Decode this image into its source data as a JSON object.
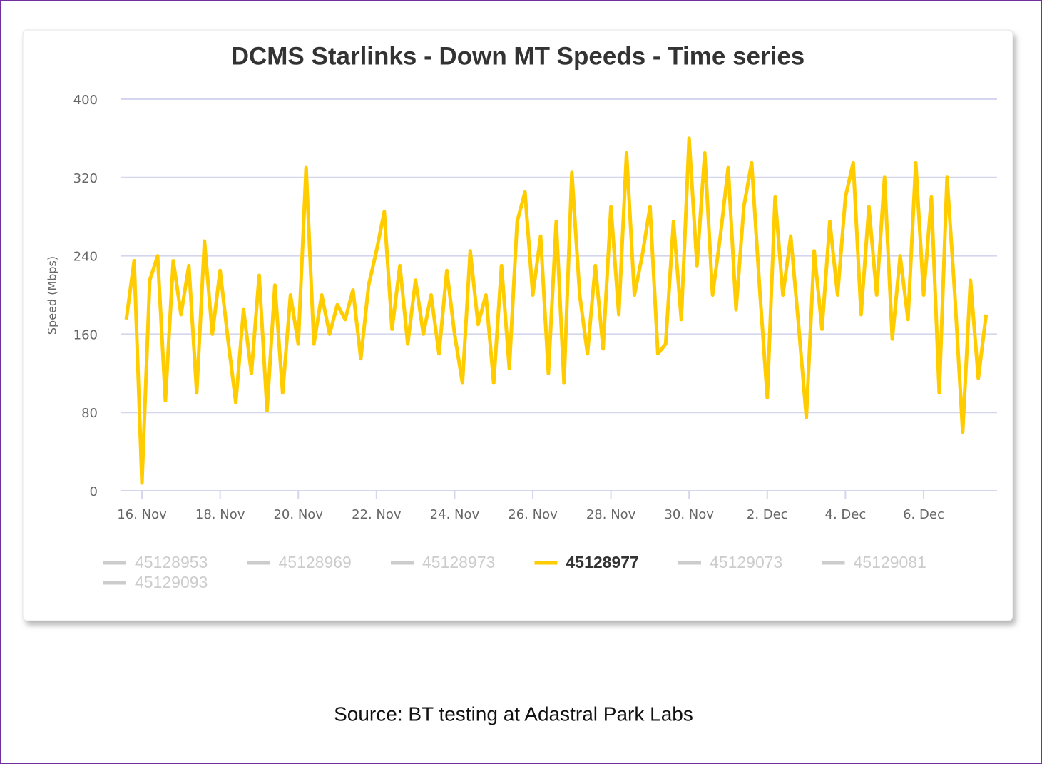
{
  "chart_data": {
    "type": "line",
    "title": "DCMS Starlinks - Down MT Speeds - Time series",
    "y_label": "Speed (Mbps)",
    "source": "Source: BT testing at Adastral Park Labs",
    "x": [
      -0.4,
      -0.2,
      0,
      0.2,
      0.4,
      0.6,
      0.8,
      1,
      1.2,
      1.4,
      1.6,
      1.8,
      2,
      2.2,
      2.4,
      2.6,
      2.8,
      3,
      3.2,
      3.4,
      3.6,
      3.8,
      4,
      4.2,
      4.4,
      4.6,
      4.8,
      5,
      5.2,
      5.4,
      5.6,
      5.8,
      6,
      6.2,
      6.4,
      6.6,
      6.8,
      7,
      7.2,
      7.4,
      7.6,
      7.8,
      8,
      8.2,
      8.4,
      8.6,
      8.8,
      9,
      9.2,
      9.4,
      9.6,
      9.8,
      10,
      10.2,
      10.4,
      10.6,
      10.8,
      11,
      11.2,
      11.4,
      11.6,
      11.8,
      12,
      12.2,
      12.4,
      12.6,
      12.8,
      13,
      13.2,
      13.4,
      13.6,
      13.8,
      14,
      14.2,
      14.4,
      14.6,
      14.8,
      15,
      15.2,
      15.4,
      15.6,
      15.8,
      16,
      16.2,
      16.4,
      16.6,
      16.8,
      17,
      17.2,
      17.4,
      17.6,
      17.8,
      18,
      18.2,
      18.4,
      18.6,
      18.8,
      19,
      19.2,
      19.4,
      19.6,
      19.8,
      20,
      20.2,
      20.4,
      20.6,
      20.8,
      21,
      21.2,
      21.4,
      21.6
    ],
    "series": [
      {
        "name": "45128953",
        "color": "#cccccc",
        "visible": false
      },
      {
        "name": "45128969",
        "color": "#cccccc",
        "visible": false
      },
      {
        "name": "45128973",
        "color": "#cccccc",
        "visible": false
      },
      {
        "name": "45128977",
        "color": "#ffcc00",
        "visible": true,
        "values": [
          175,
          235,
          8,
          215,
          240,
          92,
          235,
          180,
          230,
          100,
          255,
          160,
          225,
          155,
          90,
          185,
          120,
          220,
          82,
          210,
          100,
          200,
          150,
          330,
          150,
          200,
          160,
          190,
          175,
          205,
          135,
          210,
          245,
          285,
          165,
          230,
          150,
          215,
          160,
          200,
          140,
          225,
          160,
          110,
          245,
          170,
          200,
          110,
          230,
          125,
          275,
          305,
          200,
          260,
          120,
          275,
          110,
          325,
          200,
          140,
          230,
          145,
          290,
          180,
          345,
          200,
          240,
          290,
          140,
          150,
          275,
          175,
          360,
          230,
          345,
          200,
          260,
          330,
          185,
          290,
          335,
          210,
          95,
          300,
          200,
          260,
          170,
          75,
          245,
          165,
          275,
          200,
          300,
          335,
          180,
          290,
          200,
          320,
          155,
          240,
          175,
          335,
          200,
          300,
          100,
          320,
          200,
          60,
          215,
          115,
          180
        ]
      },
      {
        "name": "45129073",
        "color": "#cccccc",
        "visible": false
      },
      {
        "name": "45129081",
        "color": "#cccccc",
        "visible": false
      },
      {
        "name": "45129093",
        "color": "#cccccc",
        "visible": false
      }
    ],
    "xlim": [
      -0.53,
      21.88
    ],
    "xticks": [
      {
        "value": 0,
        "label": "16. Nov"
      },
      {
        "value": 2,
        "label": "18. Nov"
      },
      {
        "value": 4,
        "label": "20. Nov"
      },
      {
        "value": 6,
        "label": "22. Nov"
      },
      {
        "value": 8,
        "label": "24. Nov"
      },
      {
        "value": 10,
        "label": "26. Nov"
      },
      {
        "value": 12,
        "label": "28. Nov"
      },
      {
        "value": 14,
        "label": "30. Nov"
      },
      {
        "value": 16,
        "label": "2. Dec"
      },
      {
        "value": 18,
        "label": "4. Dec"
      },
      {
        "value": 20,
        "label": "6. Dec"
      }
    ],
    "ylim": [
      0,
      400
    ],
    "yticks": [
      0,
      80,
      160,
      240,
      320,
      400
    ],
    "grid": true
  }
}
